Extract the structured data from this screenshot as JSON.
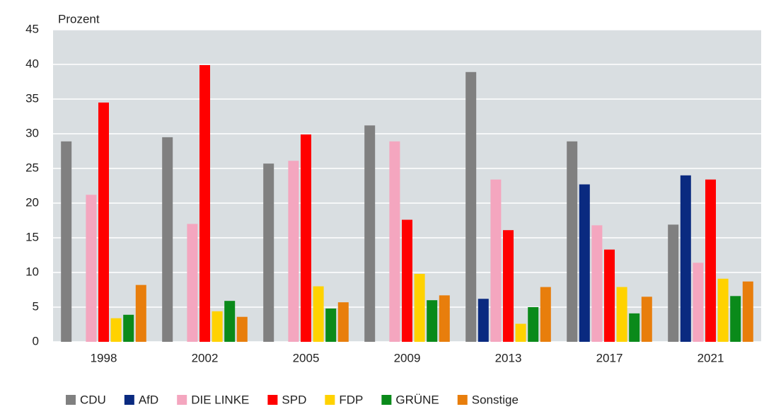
{
  "chart_data": {
    "type": "bar",
    "ylabel": "Prozent",
    "categories": [
      "1998",
      "2002",
      "2005",
      "2009",
      "2013",
      "2017",
      "2021"
    ],
    "series": [
      {
        "name": "CDU",
        "color": "#808080",
        "values": [
          28.9,
          29.5,
          25.7,
          31.2,
          38.9,
          28.9,
          16.9
        ]
      },
      {
        "name": "AfD",
        "color": "#0a2a80",
        "values": [
          null,
          null,
          null,
          null,
          6.2,
          22.7,
          24.0
        ]
      },
      {
        "name": "DIE LINKE",
        "color": "#f4a6bf",
        "values": [
          21.2,
          17.0,
          26.1,
          28.9,
          23.4,
          16.8,
          11.4
        ]
      },
      {
        "name": "SPD",
        "color": "#ff0000",
        "values": [
          34.5,
          39.9,
          29.9,
          17.6,
          16.1,
          13.3,
          23.4
        ]
      },
      {
        "name": "FDP",
        "color": "#ffd200",
        "values": [
          3.4,
          4.4,
          8.0,
          9.8,
          2.6,
          7.9,
          9.1
        ]
      },
      {
        "name": "GRÜNE",
        "color": "#0a8a1a",
        "values": [
          3.9,
          5.9,
          4.8,
          6.0,
          5.0,
          4.1,
          6.6
        ]
      },
      {
        "name": "Sonstige",
        "color": "#e87e0c",
        "values": [
          8.2,
          3.6,
          5.7,
          6.7,
          7.9,
          6.5,
          8.7
        ]
      }
    ],
    "ylim": [
      0,
      45
    ],
    "yticks": [
      0,
      5,
      10,
      15,
      20,
      25,
      30,
      35,
      40,
      45
    ],
    "grid": true,
    "legend": "bottom"
  }
}
